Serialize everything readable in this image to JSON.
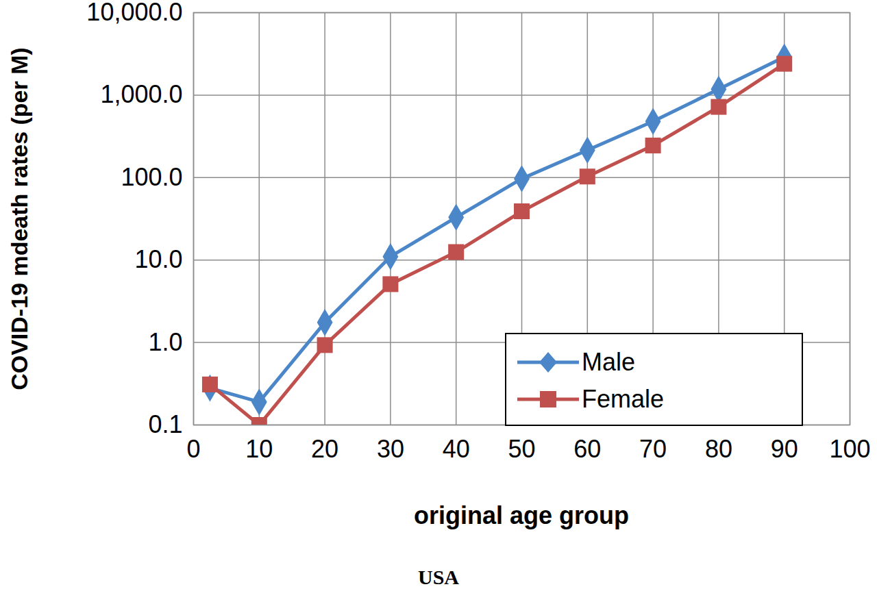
{
  "chart_data": {
    "type": "line",
    "title": "USA",
    "x_label": "original age group",
    "y_label": "COVID-19 mdeath rates (per M)",
    "x": [
      2.5,
      10,
      20,
      30,
      40,
      50,
      60,
      70,
      80,
      90
    ],
    "series": [
      {
        "name": "Male",
        "color": "#4a86c8",
        "marker": "diamond",
        "values": [
          0.28,
          0.19,
          1.75,
          11,
          33,
          97,
          215,
          480,
          1180,
          2900
        ]
      },
      {
        "name": "Female",
        "color": "#c0504d",
        "marker": "square",
        "values": [
          0.31,
          0.1,
          0.93,
          5.1,
          12.5,
          39,
          103,
          245,
          720,
          2400
        ]
      }
    ],
    "xlim": [
      0,
      100
    ],
    "xticks": [
      0,
      10,
      20,
      30,
      40,
      50,
      60,
      70,
      80,
      90,
      100
    ],
    "ylim": [
      0.1,
      10000
    ],
    "yticks": [
      0.1,
      {
        "value": 1,
        "label": "1.0"
      },
      {
        "value": 10,
        "label": "10.0"
      },
      {
        "value": 100,
        "label": "100.0"
      },
      {
        "value": 1000,
        "label": "1,000.0"
      },
      {
        "value": 10000,
        "label": "10,000.0"
      }
    ],
    "log": "y",
    "grid": true,
    "legend": "lower right"
  }
}
